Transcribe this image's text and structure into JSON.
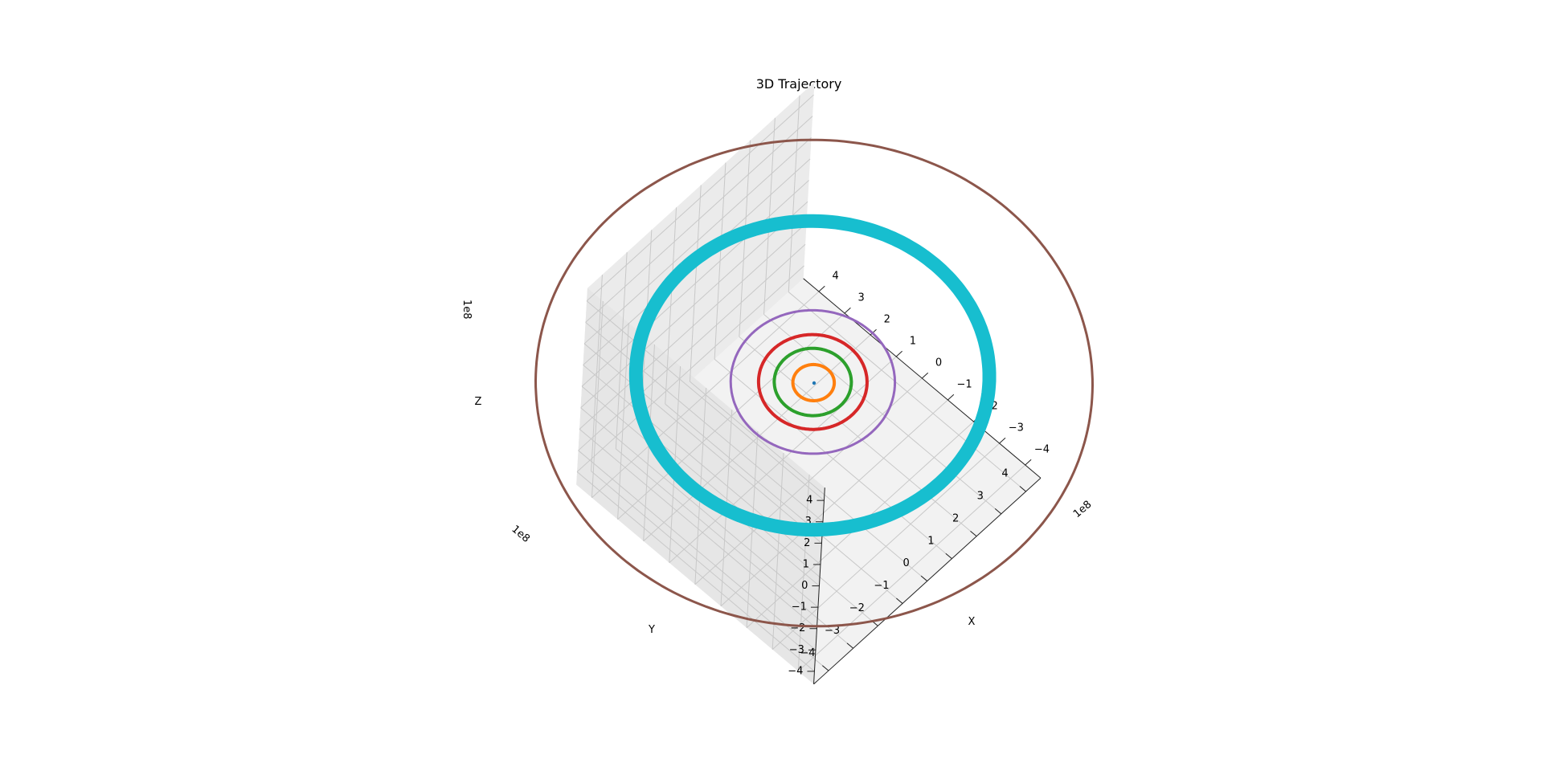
{
  "chart_data": {
    "type": "line",
    "projection": "3d",
    "title": "3D Trajectory",
    "xlabel": "X",
    "ylabel": "Y",
    "zlabel": "Z",
    "x_offset_text": "1e8",
    "y_offset_text": "1e8",
    "z_offset_text": "1e8",
    "xlim": [
      -4.6,
      4.6
    ],
    "ylim": [
      -4.6,
      4.6
    ],
    "zlim": [
      -4.6,
      4.6
    ],
    "x_ticks": [
      "−4",
      "−3",
      "−2",
      "−1",
      "0",
      "1",
      "2",
      "3",
      "4"
    ],
    "y_ticks": [
      "−4",
      "−3",
      "−2",
      "−1",
      "0",
      "1",
      "2",
      "3",
      "4"
    ],
    "z_ticks": [
      "−4",
      "−3",
      "−2",
      "−1",
      "0",
      "1",
      "2",
      "3",
      "4"
    ],
    "grid": true,
    "series": [
      {
        "color": "#1f77b4",
        "radius": 0.0,
        "center": [
          0,
          0,
          0
        ]
      },
      {
        "color": "#ff7f0e",
        "radius": 0.58,
        "center": [
          0.02,
          0.0,
          0
        ]
      },
      {
        "color": "#2ca02c",
        "radius": 1.08,
        "center": [
          0.05,
          0.0,
          0
        ]
      },
      {
        "color": "#d62728",
        "radius": 1.52,
        "center": [
          0.05,
          0.0,
          0
        ]
      },
      {
        "color": "#9467bd",
        "radius": 2.3,
        "center": [
          0.05,
          0.0,
          0
        ]
      },
      {
        "color": "#17becf",
        "radius": 4.95,
        "center": [
          0.2,
          0.15,
          0
        ]
      },
      {
        "color": "#8c564b",
        "radius": 7.8,
        "center": [
          0.0,
          0.0,
          0
        ]
      }
    ]
  }
}
